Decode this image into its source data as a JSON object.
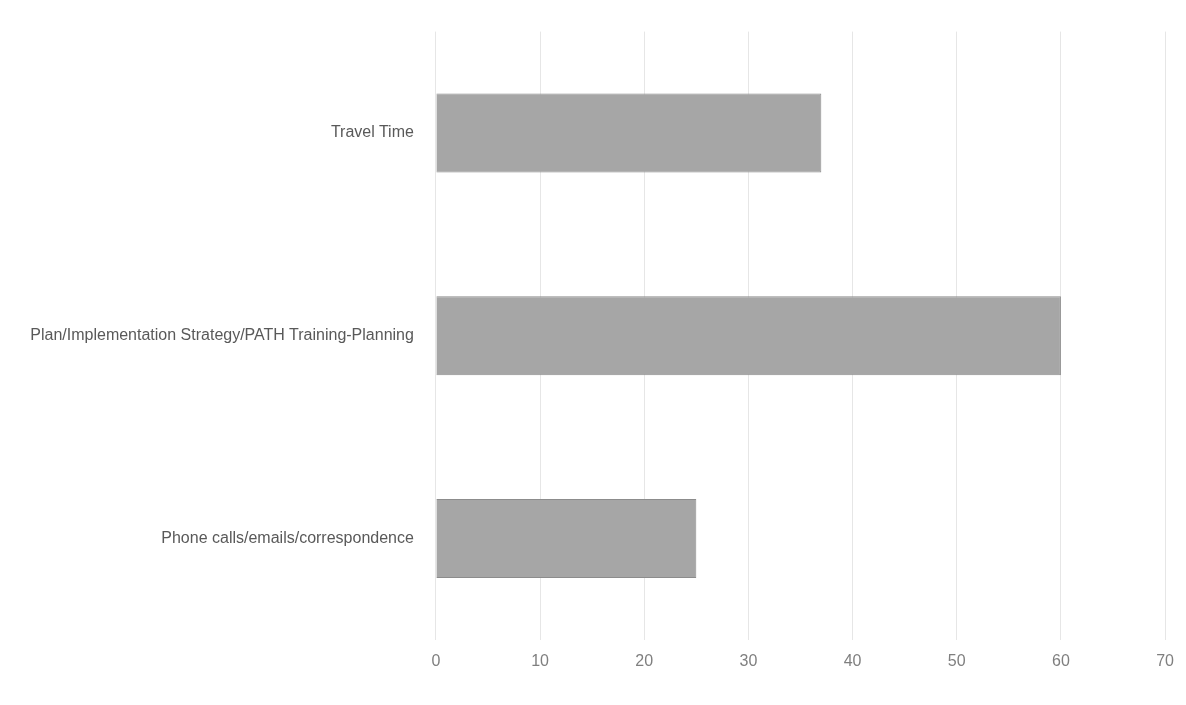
{
  "chart_data": {
    "type": "bar",
    "orientation": "horizontal",
    "categories": [
      "Travel Time",
      "Plan/Implementation Strategy/PATH Training-Planning",
      "Phone calls/emails/correspondence"
    ],
    "values": [
      37,
      60,
      25
    ],
    "color": "#a6a6a6",
    "xlim": [
      0,
      70
    ],
    "xticks": [
      0,
      10,
      20,
      30,
      40,
      50,
      60,
      70
    ],
    "grid": "x",
    "legend": false
  }
}
